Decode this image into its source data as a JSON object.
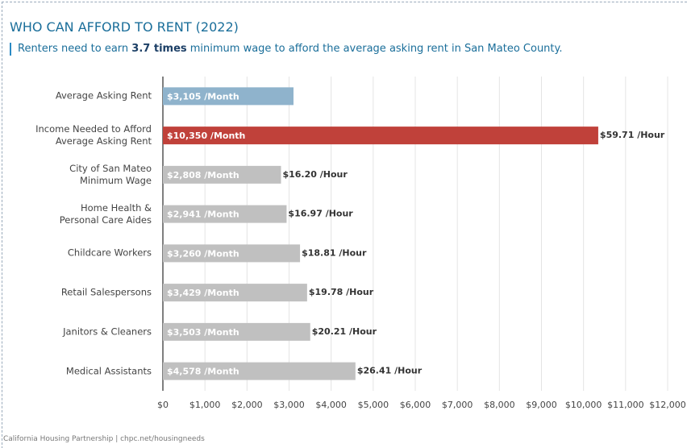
{
  "chart_data": {
    "type": "bar",
    "title": "WHO CAN AFFORD TO RENT (2022)",
    "subtitle": [
      "Renters need to earn ",
      "3.7 times",
      " minimum wage to afford the average asking rent in San Mateo County."
    ],
    "categories": [
      "Average Asking Rent",
      "Income Needed to Afford\nAverage Asking Rent",
      "City of San Mateo\nMinimum Wage",
      "Home Health &\nPersonal Care Aides",
      "Childcare Workers",
      "Retail Salespersons",
      "Janitors & Cleaners",
      "Medical Assistants"
    ],
    "values": [
      3105,
      10350,
      2808,
      2941,
      3260,
      3429,
      3503,
      4578
    ],
    "value_labels": [
      "$3,105 /Month",
      "$10,350 /Month",
      "$2,808 /Month",
      "$2,941 /Month",
      "$3,260 /Month",
      "$3,429 /Month",
      "$3,503 /Month",
      "$4,578 /Month"
    ],
    "hourly_labels": [
      null,
      "$59.71 /Hour",
      "$16.20 /Hour",
      "$16.97 /Hour",
      "$18.81 /Hour",
      "$19.78 /Hour",
      "$20.21 /Hour",
      "$26.41 /Hour"
    ],
    "colors": [
      "#8fb3cc",
      "#c0413a",
      "#c0c0c0",
      "#c0c0c0",
      "#c0c0c0",
      "#c0c0c0",
      "#c0c0c0",
      "#c0c0c0"
    ],
    "xlim": [
      0,
      12000
    ],
    "xticks": [
      {
        "value": 0,
        "label": "$0"
      },
      {
        "value": 1000,
        "label": "$1,000"
      },
      {
        "value": 2000,
        "label": "$2,000"
      },
      {
        "value": 3000,
        "label": "$3,000"
      },
      {
        "value": 4000,
        "label": "$4,000"
      },
      {
        "value": 5000,
        "label": "$5,000"
      },
      {
        "value": 6000,
        "label": "$6,000"
      },
      {
        "value": 7000,
        "label": "$7,000"
      },
      {
        "value": 8000,
        "label": "$8,000"
      },
      {
        "value": 9000,
        "label": "$9,000"
      },
      {
        "value": 10000,
        "label": "$10,000"
      },
      {
        "value": 11000,
        "label": "$11,000"
      },
      {
        "value": 12000,
        "label": "$12,000"
      }
    ],
    "grid": true,
    "source": "California Housing Partnership | chpc.net/housingneeds"
  }
}
